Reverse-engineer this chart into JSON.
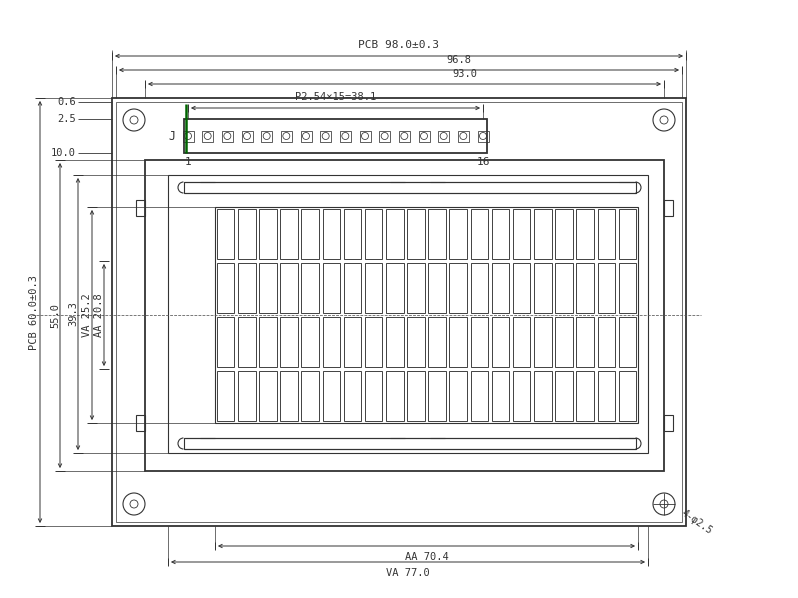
{
  "bg_color": "#ffffff",
  "line_color": "#333333",
  "dim_color": "#333333",
  "green_color": "#006400",
  "fig_width": 7.98,
  "fig_height": 5.98,
  "annotations": {
    "pcb_width": "PCB 98.0±0.3",
    "pcb_height": "PCB 60.0±0.3",
    "dim_968": "96.8",
    "dim_930": "93.0",
    "dim_p254": "P2.54×15=38.1",
    "dim_550": "55.0",
    "dim_393": "39.3",
    "dim_va252": "VA 25.2",
    "dim_aa208": "AA 20.8",
    "dim_aa704": "AA 70.4",
    "dim_va770": "VA 77.0",
    "dim_06": "0.6",
    "dim_25": "2.5",
    "dim_100": "10.0",
    "dim_4phi25": "4-φ2.5",
    "label_j": "J",
    "label_1": "1",
    "label_16": "16"
  }
}
